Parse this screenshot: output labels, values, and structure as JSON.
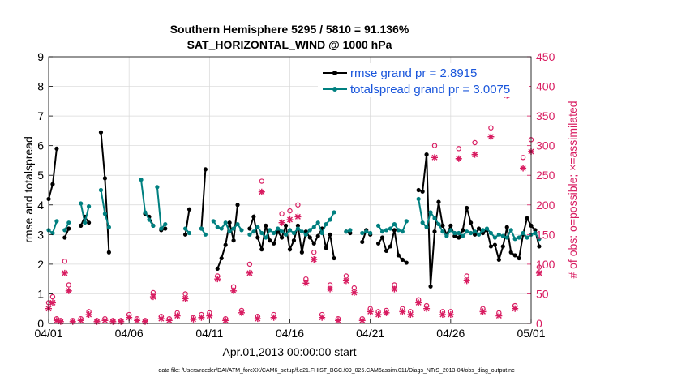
{
  "chart_data": {
    "type": "line",
    "title": "Southern Hemisphere 5295 / 5810 = 91.136%",
    "subtitle": "SAT_HORIZONTAL_WIND @ 1000 hPa",
    "xlabel": "Apr.01,2013 00:00:00 start",
    "ylabel_left": "rmse and totalspread",
    "ylabel_right": "# of obs: o=possible; ×=assimilated",
    "footnote": "data file: /Users/raeder/DAI/ATM_forcXX/CAM6_setup/f.e21.FHIST_BGC.f09_025.CAM6assim.011/Diags_NTrS_2013-04/obs_diag_output.nc",
    "xlim": [
      0,
      30
    ],
    "ylim_left": [
      0,
      9
    ],
    "ylim_right": [
      0,
      450
    ],
    "xticks": [
      0,
      5,
      10,
      15,
      20,
      25,
      30
    ],
    "xtick_labels": [
      "04/01",
      "04/06",
      "04/11",
      "04/16",
      "04/21",
      "04/26",
      "05/01"
    ],
    "yticks_left": [
      0,
      1,
      2,
      3,
      4,
      5,
      6,
      7,
      8,
      9
    ],
    "yticks_right": [
      0,
      50,
      100,
      150,
      200,
      250,
      300,
      350,
      400,
      450
    ],
    "colors": {
      "rmse": "#000000",
      "spread": "#008080",
      "obs": "#d81b60"
    },
    "series": [
      {
        "name": "rmse grand pr = 2.8915",
        "axis": "left",
        "segments": [
          [
            [
              0.0,
              4.2
            ],
            [
              0.25,
              4.7
            ],
            [
              0.5,
              5.9
            ]
          ],
          [
            [
              1.0,
              2.9
            ],
            [
              1.25,
              3.2
            ]
          ],
          [
            [
              2.0,
              3.3
            ],
            [
              2.25,
              3.6
            ],
            [
              2.5,
              3.4
            ]
          ],
          [
            [
              3.25,
              6.45
            ],
            [
              3.5,
              4.9
            ],
            [
              3.75,
              2.4
            ]
          ],
          [
            [
              6.0,
              3.7
            ],
            [
              6.25,
              3.6
            ],
            [
              6.5,
              3.3
            ]
          ],
          [
            [
              7.0,
              3.15
            ],
            [
              7.25,
              3.2
            ]
          ],
          [
            [
              8.5,
              3.0
            ],
            [
              8.75,
              3.85
            ]
          ],
          [
            [
              9.5,
              3.2
            ],
            [
              9.75,
              5.2
            ]
          ],
          [
            [
              10.5,
              1.85
            ],
            [
              10.75,
              2.2
            ],
            [
              11.0,
              2.65
            ],
            [
              11.25,
              3.4
            ],
            [
              11.5,
              2.8
            ],
            [
              11.75,
              4.0
            ]
          ],
          [
            [
              12.5,
              3.2
            ],
            [
              12.75,
              3.6
            ],
            [
              13.0,
              2.9
            ],
            [
              13.25,
              2.5
            ],
            [
              13.5,
              3.3
            ],
            [
              13.75,
              2.8
            ],
            [
              14.0,
              2.7
            ],
            [
              14.25,
              3.1
            ],
            [
              14.5,
              2.9
            ],
            [
              14.75,
              3.3
            ],
            [
              15.0,
              2.5
            ],
            [
              15.25,
              2.8
            ],
            [
              15.5,
              3.3
            ],
            [
              15.75,
              2.4
            ],
            [
              16.0,
              3.1
            ],
            [
              16.25,
              2.9
            ],
            [
              16.5,
              2.7
            ],
            [
              16.75,
              2.95
            ],
            [
              17.0,
              3.2
            ],
            [
              17.25,
              2.55
            ],
            [
              17.5,
              3.0
            ],
            [
              17.75,
              2.2
            ]
          ],
          [
            [
              18.5,
              3.1
            ],
            [
              18.75,
              3.05
            ]
          ],
          [
            [
              19.5,
              2.75
            ],
            [
              19.75,
              3.15
            ],
            [
              20.0,
              3.0
            ]
          ],
          [
            [
              20.5,
              2.7
            ],
            [
              20.75,
              2.9
            ],
            [
              21.0,
              2.45
            ],
            [
              21.25,
              2.6
            ],
            [
              21.5,
              3.15
            ],
            [
              21.75,
              2.3
            ],
            [
              22.0,
              2.15
            ],
            [
              22.25,
              2.05
            ]
          ],
          [
            [
              23.0,
              4.5
            ],
            [
              23.25,
              4.45
            ],
            [
              23.5,
              5.7
            ],
            [
              23.75,
              1.25
            ],
            [
              24.0,
              3.1
            ],
            [
              24.25,
              4.1
            ],
            [
              24.5,
              3.3
            ],
            [
              24.75,
              3.0
            ],
            [
              25.0,
              3.3
            ],
            [
              25.25,
              2.95
            ],
            [
              25.5,
              2.9
            ],
            [
              25.75,
              3.15
            ],
            [
              26.0,
              3.9
            ],
            [
              26.25,
              3.4
            ],
            [
              26.5,
              3.0
            ],
            [
              26.75,
              3.2
            ],
            [
              27.0,
              3.05
            ],
            [
              27.25,
              3.15
            ],
            [
              27.5,
              2.6
            ],
            [
              27.75,
              2.65
            ],
            [
              28.0,
              2.15
            ],
            [
              28.25,
              2.6
            ],
            [
              28.5,
              3.25
            ],
            [
              28.75,
              2.4
            ],
            [
              29.0,
              2.3
            ],
            [
              29.25,
              2.2
            ],
            [
              29.5,
              3.0
            ],
            [
              29.75,
              3.55
            ],
            [
              30.0,
              3.3
            ],
            [
              30.25,
              3.15
            ],
            [
              30.5,
              2.6
            ]
          ]
        ]
      },
      {
        "name": "totalspread grand pr = 3.0075",
        "axis": "left",
        "segments": [
          [
            [
              0.0,
              3.15
            ],
            [
              0.25,
              3.05
            ],
            [
              0.5,
              3.45
            ]
          ],
          [
            [
              1.0,
              3.15
            ],
            [
              1.25,
              3.4
            ]
          ],
          [
            [
              2.0,
              4.05
            ],
            [
              2.25,
              3.4
            ],
            [
              2.5,
              3.95
            ]
          ],
          [
            [
              3.25,
              4.5
            ],
            [
              3.5,
              3.7
            ],
            [
              3.75,
              3.25
            ]
          ],
          [
            [
              5.75,
              4.85
            ],
            [
              6.0,
              3.75
            ],
            [
              6.25,
              3.5
            ],
            [
              6.5,
              3.3
            ]
          ],
          [
            [
              6.75,
              4.6
            ],
            [
              7.0,
              3.2
            ],
            [
              7.25,
              3.35
            ]
          ],
          [
            [
              8.5,
              3.2
            ],
            [
              8.75,
              3.05
            ]
          ],
          [
            [
              9.5,
              3.2
            ],
            [
              9.75,
              3.0
            ]
          ],
          [
            [
              10.25,
              3.45
            ],
            [
              10.5,
              3.25
            ],
            [
              10.75,
              3.2
            ],
            [
              11.0,
              3.4
            ],
            [
              11.25,
              3.1
            ],
            [
              11.5,
              3.2
            ],
            [
              11.75,
              3.35
            ],
            [
              12.0,
              3.15
            ]
          ],
          [
            [
              12.5,
              3.0
            ],
            [
              12.75,
              3.1
            ],
            [
              13.0,
              3.25
            ],
            [
              13.25,
              3.05
            ],
            [
              13.5,
              2.9
            ],
            [
              13.75,
              3.15
            ],
            [
              14.0,
              3.05
            ],
            [
              14.25,
              3.2
            ],
            [
              14.5,
              3.1
            ],
            [
              14.75,
              3.0
            ],
            [
              15.0,
              3.15
            ],
            [
              15.25,
              3.05
            ],
            [
              15.5,
              3.2
            ],
            [
              15.75,
              3.1
            ],
            [
              16.0,
              3.0
            ],
            [
              16.25,
              3.15
            ],
            [
              16.5,
              3.25
            ],
            [
              16.75,
              3.4
            ],
            [
              17.0,
              3.05
            ],
            [
              17.25,
              3.35
            ],
            [
              17.5,
              3.5
            ],
            [
              17.75,
              3.75
            ]
          ],
          [
            [
              18.5,
              3.1
            ],
            [
              18.75,
              3.15
            ]
          ],
          [
            [
              19.5,
              3.05
            ],
            [
              19.75,
              3.1
            ],
            [
              20.0,
              3.05
            ]
          ],
          [
            [
              20.5,
              3.3
            ],
            [
              20.75,
              3.1
            ],
            [
              21.0,
              3.15
            ],
            [
              21.25,
              3.2
            ],
            [
              21.5,
              3.35
            ],
            [
              21.75,
              3.15
            ],
            [
              22.0,
              3.1
            ],
            [
              22.25,
              3.45
            ]
          ],
          [
            [
              23.0,
              4.2
            ],
            [
              23.25,
              3.4
            ],
            [
              23.5,
              3.25
            ],
            [
              23.75,
              3.75
            ],
            [
              24.0,
              3.55
            ],
            [
              24.25,
              3.35
            ],
            [
              24.5,
              3.1
            ],
            [
              24.75,
              2.95
            ],
            [
              25.0,
              3.15
            ],
            [
              25.25,
              3.05
            ],
            [
              25.5,
              3.05
            ],
            [
              25.75,
              2.95
            ],
            [
              26.0,
              3.1
            ],
            [
              26.25,
              3.05
            ],
            [
              26.5,
              3.1
            ],
            [
              26.75,
              3.0
            ],
            [
              27.0,
              3.15
            ],
            [
              27.25,
              3.2
            ],
            [
              27.5,
              3.05
            ],
            [
              27.75,
              2.9
            ],
            [
              28.0,
              3.0
            ],
            [
              28.25,
              2.95
            ],
            [
              28.5,
              2.9
            ],
            [
              28.75,
              3.15
            ],
            [
              29.0,
              2.85
            ],
            [
              29.25,
              2.9
            ],
            [
              29.5,
              3.05
            ],
            [
              29.75,
              2.9
            ],
            [
              30.0,
              3.0
            ],
            [
              30.25,
              3.05
            ],
            [
              30.5,
              2.85
            ]
          ]
        ]
      },
      {
        "name": "obs possible",
        "axis": "right",
        "marker": "circle",
        "x": [
          0.0,
          0.25,
          0.5,
          0.75,
          1.0,
          1.25,
          1.5,
          2.0,
          2.5,
          3.0,
          3.5,
          4.0,
          4.5,
          5.0,
          5.5,
          6.0,
          6.5,
          7.0,
          7.5,
          8.0,
          8.5,
          9.0,
          9.5,
          10.0,
          10.5,
          11.0,
          11.5,
          12.0,
          12.5,
          13.0,
          13.25,
          14.0,
          14.5,
          15.0,
          15.5,
          16.0,
          16.5,
          17.0,
          17.5,
          18.0,
          18.5,
          19.0,
          19.5,
          20.0,
          20.5,
          21.0,
          21.5,
          22.0,
          22.5,
          23.0,
          23.5,
          24.0,
          24.5,
          25.0,
          25.5,
          26.0,
          26.5,
          27.0,
          27.5,
          28.0,
          28.5,
          29.0,
          29.5,
          30.0,
          30.5
        ],
        "y": [
          35,
          45,
          8,
          5,
          105,
          65,
          5,
          8,
          20,
          5,
          8,
          5,
          5,
          15,
          8,
          5,
          52,
          12,
          8,
          18,
          50,
          10,
          15,
          18,
          80,
          8,
          62,
          22,
          100,
          12,
          240,
          15,
          185,
          190,
          200,
          75,
          120,
          15,
          65,
          8,
          80,
          60,
          8,
          25,
          20,
          22,
          65,
          25,
          20,
          40,
          30,
          300,
          20,
          20,
          295,
          80,
          305,
          25,
          330,
          18,
          400,
          30,
          280,
          310,
          95
        ]
      },
      {
        "name": "obs assimilated",
        "axis": "right",
        "marker": "x",
        "x": [
          0.0,
          0.25,
          0.5,
          0.75,
          1.0,
          1.25,
          1.5,
          2.0,
          2.5,
          3.0,
          3.5,
          4.0,
          4.5,
          5.0,
          5.5,
          6.0,
          6.5,
          7.0,
          7.5,
          8.0,
          8.5,
          9.0,
          9.5,
          10.0,
          10.5,
          11.0,
          11.5,
          12.0,
          12.5,
          13.0,
          13.25,
          14.0,
          14.5,
          15.0,
          15.5,
          16.0,
          16.5,
          17.0,
          17.5,
          18.0,
          18.5,
          19.0,
          19.5,
          20.0,
          20.5,
          21.0,
          21.5,
          22.0,
          22.5,
          23.0,
          23.5,
          24.0,
          24.5,
          25.0,
          25.5,
          26.0,
          26.5,
          27.0,
          27.5,
          28.0,
          28.5,
          29.0,
          29.5,
          30.0,
          30.5
        ],
        "y": [
          25,
          35,
          5,
          3,
          85,
          55,
          3,
          5,
          15,
          3,
          5,
          3,
          3,
          10,
          5,
          3,
          45,
          8,
          5,
          13,
          42,
          7,
          10,
          13,
          75,
          5,
          55,
          18,
          85,
          8,
          222,
          10,
          170,
          175,
          180,
          68,
          108,
          10,
          58,
          5,
          72,
          52,
          5,
          20,
          15,
          18,
          58,
          20,
          15,
          35,
          25,
          280,
          15,
          15,
          278,
          72,
          285,
          20,
          315,
          13,
          385,
          25,
          262,
          290,
          85
        ]
      }
    ]
  }
}
